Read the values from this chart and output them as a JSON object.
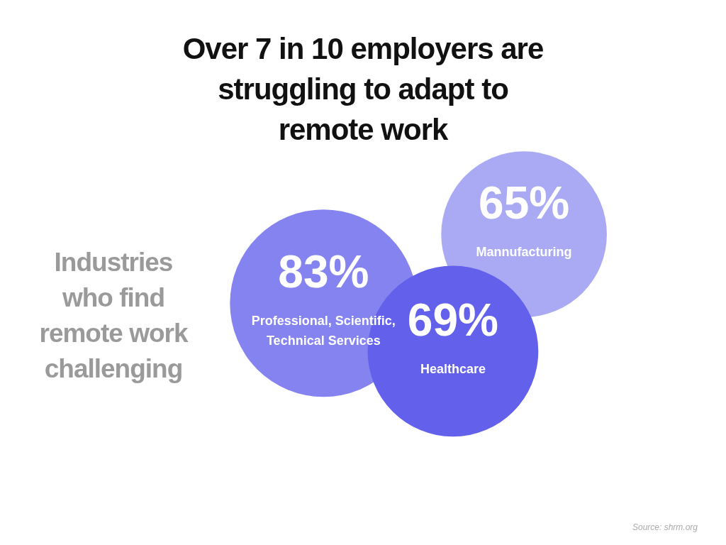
{
  "chart_data": {
    "type": "other",
    "title": "Over 7 in 10 employers are struggling to adapt to remote work",
    "subtitle": "Industries who find remote work challenging",
    "categories": [
      "Professional, Scientific, Technical Services",
      "Mannufacturing",
      "Healthcare"
    ],
    "values": [
      83,
      65,
      69
    ],
    "value_labels": [
      "83%",
      "65%",
      "69%"
    ],
    "colors": [
      "#8583f0",
      "#aaa9f4",
      "#6361ec"
    ],
    "annotations": [
      "Source: shrm.org"
    ]
  }
}
